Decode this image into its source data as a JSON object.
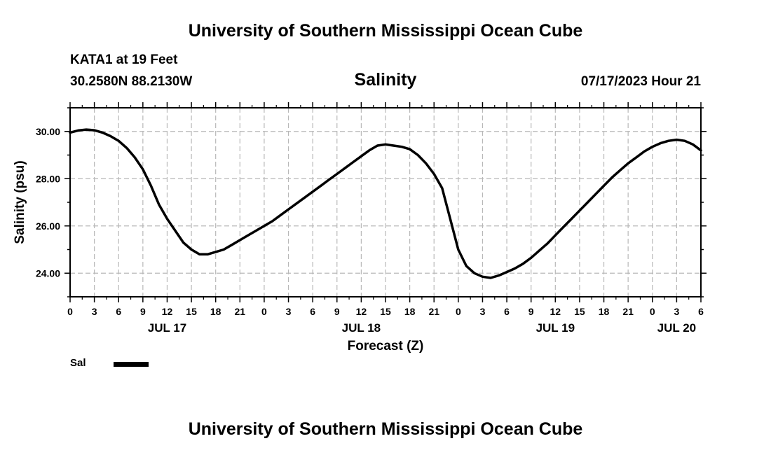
{
  "header": {
    "title_top": "University of Southern Mississippi Ocean Cube",
    "title_bottom": "University of Southern Mississippi Ocean Cube",
    "station": "KATA1 at 19 Feet",
    "coordinates": "30.2580N  88.2130W",
    "variable": "Salinity",
    "datetime": "07/17/2023 Hour 21"
  },
  "legend": {
    "label": "Sal",
    "color": "#000000"
  },
  "chart_data": {
    "type": "line",
    "title": "Salinity",
    "xlabel": "Forecast (Z)",
    "ylabel": "Salinity (psu)",
    "xlim": [
      0,
      78
    ],
    "ylim": [
      23,
      31
    ],
    "grid": true,
    "x_ticks": [
      0,
      3,
      6,
      9,
      12,
      15,
      18,
      21,
      24,
      27,
      30,
      33,
      36,
      39,
      42,
      45,
      48,
      51,
      54,
      57,
      60,
      63,
      66,
      69,
      72,
      75,
      78
    ],
    "x_tick_labels": [
      "0",
      "3",
      "6",
      "9",
      "12",
      "15",
      "18",
      "21",
      "0",
      "3",
      "6",
      "9",
      "12",
      "15",
      "18",
      "21",
      "0",
      "3",
      "6",
      "9",
      "12",
      "15",
      "18",
      "21",
      "0",
      "3",
      "6"
    ],
    "date_labels": [
      {
        "label": "JUL 17",
        "x": 12
      },
      {
        "label": "JUL 18",
        "x": 36
      },
      {
        "label": "JUL 19",
        "x": 60
      },
      {
        "label": "JUL 20",
        "x": 75
      }
    ],
    "y_ticks": [
      24,
      26,
      28,
      30
    ],
    "y_tick_labels": [
      "24.00",
      "26.00",
      "28.00",
      "30.00"
    ],
    "series": [
      {
        "name": "Sal",
        "color": "#000000",
        "x": [
          0,
          1,
          2,
          3,
          4,
          5,
          6,
          7,
          8,
          9,
          10,
          11,
          12,
          13,
          14,
          15,
          16,
          17,
          18,
          19,
          20,
          21,
          22,
          23,
          24,
          25,
          26,
          27,
          28,
          29,
          30,
          31,
          32,
          33,
          34,
          35,
          36,
          37,
          38,
          39,
          40,
          41,
          42,
          43,
          44,
          45,
          46,
          47,
          48,
          49,
          50,
          51,
          52,
          53,
          54,
          55,
          56,
          57,
          58,
          59,
          60,
          61,
          62,
          63,
          64,
          65,
          66,
          67,
          68,
          69,
          70,
          71,
          72,
          73,
          74,
          75,
          76,
          77,
          78
        ],
        "values": [
          29.95,
          30.04,
          30.08,
          30.05,
          29.95,
          29.8,
          29.6,
          29.3,
          28.9,
          28.4,
          27.7,
          26.9,
          26.3,
          25.8,
          25.3,
          25.0,
          24.8,
          24.8,
          24.9,
          25.0,
          25.2,
          25.4,
          25.6,
          25.8,
          26.0,
          26.2,
          26.45,
          26.7,
          26.95,
          27.2,
          27.45,
          27.7,
          27.95,
          28.2,
          28.45,
          28.7,
          28.95,
          29.2,
          29.4,
          29.45,
          29.4,
          29.35,
          29.25,
          29.0,
          28.65,
          28.2,
          27.6,
          26.3,
          25.0,
          24.3,
          24.0,
          23.85,
          23.8,
          23.9,
          24.05,
          24.2,
          24.4,
          24.65,
          24.95,
          25.25,
          25.6,
          25.95,
          26.3,
          26.65,
          27.0,
          27.35,
          27.7,
          28.05,
          28.35,
          28.65,
          28.9,
          29.15,
          29.35,
          29.5,
          29.6,
          29.65,
          29.6,
          29.45,
          29.2
        ]
      }
    ]
  }
}
